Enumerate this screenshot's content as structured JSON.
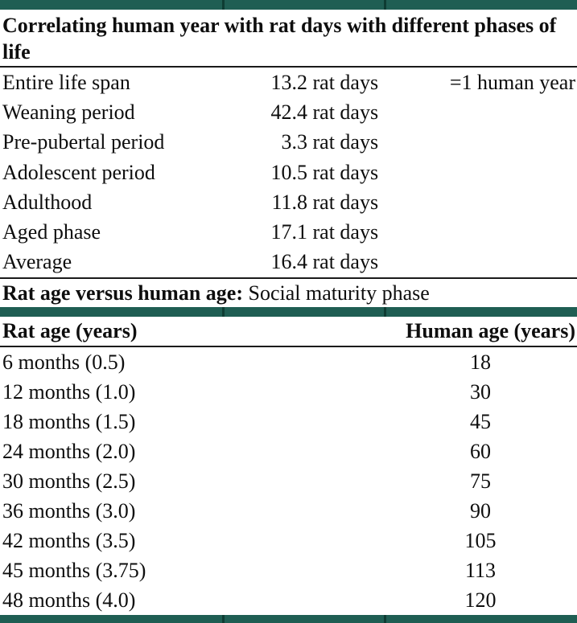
{
  "theme": {
    "teal_bar_color": "#1f5e53",
    "bar_divider_color": "#0e3c33",
    "text_color": "#0e0e0e",
    "rule_color": "#1a1a1a"
  },
  "table1": {
    "title": "Correlating human year with rat days with different phases of life",
    "unit": " rat days",
    "rows": [
      {
        "label": "Entire life span",
        "value": "13.2",
        "note": "=1 human year"
      },
      {
        "label": "Weaning period",
        "value": "42.4",
        "note": ""
      },
      {
        "label": "Pre-pubertal period",
        "value": "3.3",
        "note": ""
      },
      {
        "label": "Adolescent period",
        "value": "10.5",
        "note": ""
      },
      {
        "label": "Adulthood",
        "value": "11.8",
        "note": ""
      },
      {
        "label": "Aged phase",
        "value": "17.1",
        "note": ""
      },
      {
        "label": "Average",
        "value": "16.4",
        "note": ""
      }
    ]
  },
  "table2": {
    "caption_bold": "Rat age versus human age:",
    "caption_regular": " Social maturity phase",
    "col1_header": "Rat age (years)",
    "col2_header": "Human age (years)",
    "rows": [
      {
        "rat": "6 months (0.5)",
        "human": "18"
      },
      {
        "rat": "12 months (1.0)",
        "human": "30"
      },
      {
        "rat": "18 months (1.5)",
        "human": "45"
      },
      {
        "rat": "24 months (2.0)",
        "human": "60"
      },
      {
        "rat": "30 months (2.5)",
        "human": "75"
      },
      {
        "rat": "36 months (3.0)",
        "human": "90"
      },
      {
        "rat": "42 months (3.5)",
        "human": "105"
      },
      {
        "rat": "45 months (3.75)",
        "human": "113"
      },
      {
        "rat": "48 months (4.0)",
        "human": "120"
      }
    ]
  }
}
